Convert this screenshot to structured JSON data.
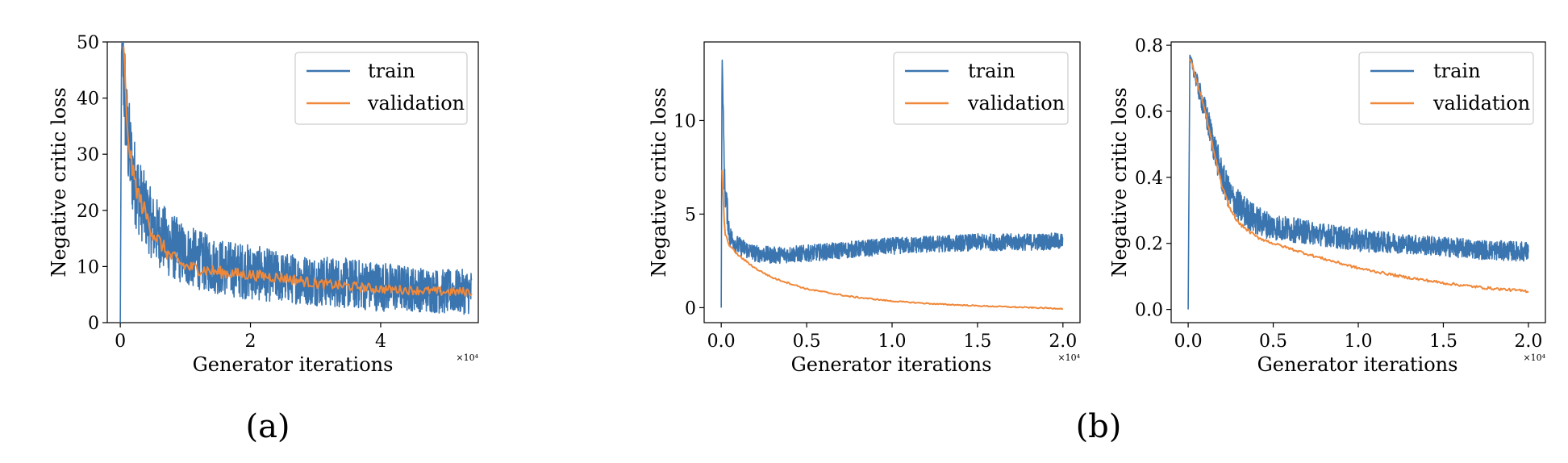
{
  "figure": {
    "captions": [
      "(a)",
      "(b)"
    ],
    "colors": {
      "train": "#3a75b0",
      "validation": "#f0883a"
    }
  },
  "chart_data": [
    {
      "type": "line",
      "xlabel": "Generator iterations",
      "ylabel": "Negative critic loss",
      "x_multiplier": "×10⁴",
      "xlim": [
        -0.2,
        5.5
      ],
      "ylim": [
        0,
        50
      ],
      "xticks": [
        0,
        2,
        4
      ],
      "yticks": [
        0,
        10,
        20,
        30,
        40,
        50
      ],
      "grid": false,
      "legend": "top-right",
      "series": [
        {
          "name": "train",
          "color": "#3a75b0",
          "x": [
            0,
            0.02,
            0.05,
            0.1,
            0.2,
            0.3,
            0.5,
            0.75,
            1.0,
            1.5,
            2.0,
            2.5,
            3.0,
            3.5,
            4.0,
            4.5,
            5.0,
            5.4
          ],
          "y": [
            0,
            50,
            45,
            34,
            26,
            22,
            17,
            14,
            12,
            10,
            9,
            8,
            7.5,
            7,
            6.5,
            6,
            5.5,
            5.5
          ],
          "noise": [
            0,
            0,
            10,
            9,
            8,
            7,
            6,
            6,
            5.5,
            5,
            5,
            4.5,
            4.5,
            4.5,
            4.5,
            4,
            4,
            4
          ]
        },
        {
          "name": "validation",
          "color": "#f0883a",
          "x": [
            0.05,
            0.1,
            0.2,
            0.3,
            0.5,
            0.75,
            1.0,
            1.5,
            2.0,
            2.5,
            3.0,
            3.5,
            4.0,
            4.5,
            5.0,
            5.4
          ],
          "y": [
            50,
            35,
            26,
            22,
            16,
            12,
            10,
            9,
            8.5,
            8,
            7,
            6.5,
            6,
            5.8,
            5.5,
            5.5
          ],
          "noise": [
            2,
            2,
            2,
            1.8,
            1.5,
            1.3,
            1.2,
            1.1,
            1.0,
            1.0,
            0.9,
            0.9,
            0.8,
            0.8,
            0.8,
            0.8
          ]
        }
      ]
    },
    {
      "type": "line",
      "xlabel": "Generator iterations",
      "ylabel": "Negative critic loss",
      "x_multiplier": "×10⁴",
      "xlim": [
        -0.1,
        2.1
      ],
      "ylim": [
        -0.8,
        14.2
      ],
      "xticks": [
        0.0,
        0.5,
        1.0,
        1.5,
        2.0
      ],
      "xticklabels": [
        "0.0",
        "0.5",
        "1.0",
        "1.5",
        "2.0"
      ],
      "yticks": [
        0,
        5,
        10
      ],
      "grid": false,
      "legend": "top-right",
      "series": [
        {
          "name": "train",
          "color": "#3a75b0",
          "x": [
            0,
            0.005,
            0.02,
            0.05,
            0.1,
            0.2,
            0.3,
            0.5,
            0.75,
            1.0,
            1.25,
            1.5,
            1.75,
            2.0
          ],
          "y": [
            0,
            13.6,
            6.5,
            3.8,
            3.3,
            2.9,
            2.8,
            2.9,
            3.1,
            3.3,
            3.4,
            3.5,
            3.5,
            3.55
          ],
          "noise": [
            0,
            0,
            1.0,
            0.6,
            0.5,
            0.45,
            0.45,
            0.45,
            0.45,
            0.45,
            0.45,
            0.45,
            0.45,
            0.45
          ]
        },
        {
          "name": "validation",
          "color": "#f0883a",
          "x": [
            0.005,
            0.02,
            0.05,
            0.1,
            0.2,
            0.3,
            0.5,
            0.75,
            1.0,
            1.25,
            1.5,
            1.75,
            2.0
          ],
          "y": [
            7.4,
            4.0,
            3.3,
            2.8,
            2.1,
            1.6,
            1.0,
            0.6,
            0.35,
            0.2,
            0.1,
            0.02,
            -0.05
          ],
          "noise": [
            0.1,
            0.08,
            0.06,
            0.05,
            0.05,
            0.04,
            0.04,
            0.04,
            0.03,
            0.03,
            0.03,
            0.03,
            0.03
          ]
        }
      ]
    },
    {
      "type": "line",
      "xlabel": "Generator iterations",
      "ylabel": "Negative critic loss",
      "x_multiplier": "×10⁴",
      "xlim": [
        -0.1,
        2.1
      ],
      "ylim": [
        -0.04,
        0.81
      ],
      "xticks": [
        0.0,
        0.5,
        1.0,
        1.5,
        2.0
      ],
      "xticklabels": [
        "0.0",
        "0.5",
        "1.0",
        "1.5",
        "2.0"
      ],
      "yticks": [
        0.0,
        0.2,
        0.4,
        0.6,
        0.8
      ],
      "yticklabels": [
        "0.0",
        "0.2",
        "0.4",
        "0.6",
        "0.8"
      ],
      "grid": false,
      "legend": "top-right",
      "series": [
        {
          "name": "train",
          "color": "#3a75b0",
          "x": [
            0,
            0.01,
            0.03,
            0.06,
            0.1,
            0.15,
            0.2,
            0.25,
            0.3,
            0.4,
            0.5,
            0.75,
            1.0,
            1.25,
            1.5,
            1.75,
            2.0
          ],
          "y": [
            0,
            0.77,
            0.73,
            0.67,
            0.6,
            0.5,
            0.4,
            0.34,
            0.31,
            0.27,
            0.25,
            0.23,
            0.21,
            0.2,
            0.19,
            0.18,
            0.175
          ],
          "noise": [
            0,
            0,
            0.02,
            0.03,
            0.04,
            0.05,
            0.05,
            0.05,
            0.05,
            0.045,
            0.04,
            0.035,
            0.035,
            0.03,
            0.03,
            0.03,
            0.03
          ]
        },
        {
          "name": "validation",
          "color": "#f0883a",
          "x": [
            0.01,
            0.03,
            0.06,
            0.1,
            0.15,
            0.2,
            0.25,
            0.3,
            0.4,
            0.5,
            0.75,
            1.0,
            1.25,
            1.5,
            1.75,
            2.0
          ],
          "y": [
            0.76,
            0.73,
            0.67,
            0.6,
            0.48,
            0.37,
            0.3,
            0.26,
            0.22,
            0.2,
            0.16,
            0.125,
            0.1,
            0.08,
            0.065,
            0.055
          ],
          "noise": [
            0.005,
            0.005,
            0.006,
            0.006,
            0.006,
            0.006,
            0.005,
            0.005,
            0.005,
            0.004,
            0.004,
            0.004,
            0.004,
            0.004,
            0.004,
            0.004
          ]
        }
      ]
    }
  ]
}
